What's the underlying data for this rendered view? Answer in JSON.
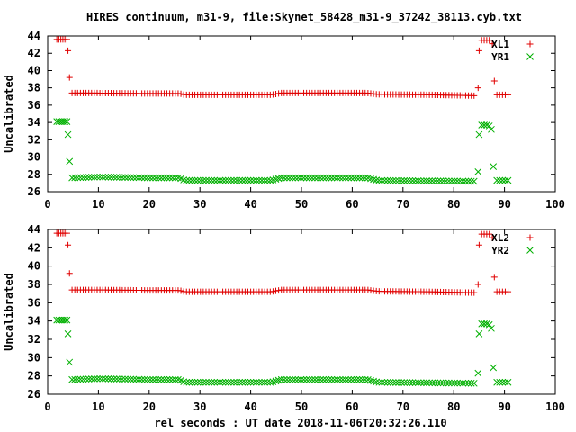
{
  "chart_data": {
    "type": "scatter",
    "title": "HIRES continuum, m31-9, file:Skynet_58428_m31-9_37242_38113.cyb.txt",
    "xlabel": "rel seconds : UT date 2018-11-06T20:32:26.110",
    "colors": {
      "red": "#e00000",
      "green": "#00b000",
      "axis": "#000000"
    },
    "panels": [
      {
        "ylabel": "Uncalibrated",
        "xlim": [
          0,
          100
        ],
        "ylim": [
          26,
          44
        ],
        "xticks": [
          "0",
          "10",
          "20",
          "30",
          "40",
          "50",
          "60",
          "70",
          "80",
          "90",
          "100"
        ],
        "yticks": [
          "26",
          "28",
          "30",
          "32",
          "34",
          "36",
          "38",
          "40",
          "42",
          "44"
        ],
        "legend_position": "top-right",
        "series": [
          {
            "name": "XL1",
            "marker": "plus",
            "color": "#e00000",
            "segments": [
              {
                "x": [
                  1.8,
                  2.2,
                  2.6,
                  3.0,
                  3.4,
                  3.8
                ],
                "y": [
                  43.6,
                  43.6,
                  43.6,
                  43.6,
                  43.6,
                  43.6
                ]
              },
              {
                "x": [
                  4.0
                ],
                "y": [
                  42.3
                ]
              },
              {
                "x": [
                  4.3
                ],
                "y": [
                  39.2
                ]
              },
              {
                "x_start": 4.8,
                "x_end": 84.2,
                "step": 0.55,
                "y_points": [
                  [
                    4.8,
                    37.4
                  ],
                  [
                    10,
                    37.4
                  ],
                  [
                    20,
                    37.35
                  ],
                  [
                    26,
                    37.35
                  ],
                  [
                    27,
                    37.2
                  ],
                  [
                    44,
                    37.2
                  ],
                  [
                    46,
                    37.4
                  ],
                  [
                    63,
                    37.4
                  ],
                  [
                    65,
                    37.25
                  ],
                  [
                    75,
                    37.2
                  ],
                  [
                    84,
                    37.1
                  ]
                ]
              },
              {
                "x": [
                  84.8
                ],
                "y": [
                  38.0
                ]
              },
              {
                "x": [
                  85.0
                ],
                "y": [
                  42.3
                ]
              },
              {
                "x": [
                  85.5,
                  86.0,
                  86.5,
                  87.0
                ],
                "y": [
                  43.5,
                  43.5,
                  43.5,
                  43.5
                ]
              },
              {
                "x": [
                  87.6
                ],
                "y": [
                  43.1
                ]
              },
              {
                "x": [
                  88.0
                ],
                "y": [
                  38.8
                ]
              },
              {
                "x_start": 88.5,
                "x_end": 90.8,
                "step": 0.55,
                "y_points": [
                  [
                    88.5,
                    37.2
                  ],
                  [
                    90.8,
                    37.2
                  ]
                ]
              }
            ]
          },
          {
            "name": "YR1",
            "marker": "cross",
            "color": "#00b000",
            "segments": [
              {
                "x": [
                  1.8,
                  2.2,
                  2.6,
                  3.0,
                  3.4,
                  3.8
                ],
                "y": [
                  34.1,
                  34.1,
                  34.1,
                  34.1,
                  34.1,
                  34.1
                ]
              },
              {
                "x": [
                  4.0
                ],
                "y": [
                  32.6
                ]
              },
              {
                "x": [
                  4.3
                ],
                "y": [
                  29.5
                ]
              },
              {
                "x_start": 4.8,
                "x_end": 84.2,
                "step": 0.55,
                "y_points": [
                  [
                    4.8,
                    27.6
                  ],
                  [
                    10,
                    27.7
                  ],
                  [
                    20,
                    27.6
                  ],
                  [
                    26,
                    27.6
                  ],
                  [
                    27,
                    27.3
                  ],
                  [
                    44,
                    27.3
                  ],
                  [
                    46,
                    27.6
                  ],
                  [
                    63,
                    27.6
                  ],
                  [
                    65,
                    27.3
                  ],
                  [
                    75,
                    27.25
                  ],
                  [
                    84,
                    27.2
                  ]
                ]
              },
              {
                "x": [
                  84.8
                ],
                "y": [
                  28.3
                ]
              },
              {
                "x": [
                  85.0
                ],
                "y": [
                  32.6
                ]
              },
              {
                "x": [
                  85.5,
                  86.0,
                  86.5,
                  87.0
                ],
                "y": [
                  33.7,
                  33.7,
                  33.7,
                  33.6
                ]
              },
              {
                "x": [
                  87.4
                ],
                "y": [
                  33.2
                ]
              },
              {
                "x": [
                  87.8
                ],
                "y": [
                  28.9
                ]
              },
              {
                "x_start": 88.5,
                "x_end": 90.8,
                "step": 0.55,
                "y_points": [
                  [
                    88.5,
                    27.3
                  ],
                  [
                    90.8,
                    27.3
                  ]
                ]
              }
            ]
          }
        ]
      },
      {
        "ylabel": "Uncalibrated",
        "xlim": [
          0,
          100
        ],
        "ylim": [
          26,
          44
        ],
        "xticks": [
          "0",
          "10",
          "20",
          "30",
          "40",
          "50",
          "60",
          "70",
          "80",
          "90",
          "100"
        ],
        "yticks": [
          "26",
          "28",
          "30",
          "32",
          "34",
          "36",
          "38",
          "40",
          "42",
          "44"
        ],
        "legend_position": "top-right",
        "series": [
          {
            "name": "XL2",
            "marker": "plus",
            "color": "#e00000",
            "segments": [
              {
                "x": [
                  1.8,
                  2.2,
                  2.6,
                  3.0,
                  3.4,
                  3.8
                ],
                "y": [
                  43.6,
                  43.6,
                  43.6,
                  43.6,
                  43.6,
                  43.6
                ]
              },
              {
                "x": [
                  4.0
                ],
                "y": [
                  42.3
                ]
              },
              {
                "x": [
                  4.3
                ],
                "y": [
                  39.2
                ]
              },
              {
                "x_start": 4.8,
                "x_end": 84.2,
                "step": 0.55,
                "y_points": [
                  [
                    4.8,
                    37.4
                  ],
                  [
                    10,
                    37.4
                  ],
                  [
                    20,
                    37.35
                  ],
                  [
                    26,
                    37.35
                  ],
                  [
                    27,
                    37.2
                  ],
                  [
                    44,
                    37.2
                  ],
                  [
                    46,
                    37.4
                  ],
                  [
                    63,
                    37.4
                  ],
                  [
                    65,
                    37.25
                  ],
                  [
                    75,
                    37.2
                  ],
                  [
                    84,
                    37.1
                  ]
                ]
              },
              {
                "x": [
                  84.8
                ],
                "y": [
                  38.0
                ]
              },
              {
                "x": [
                  85.0
                ],
                "y": [
                  42.3
                ]
              },
              {
                "x": [
                  85.5,
                  86.0,
                  86.5,
                  87.0
                ],
                "y": [
                  43.5,
                  43.5,
                  43.5,
                  43.5
                ]
              },
              {
                "x": [
                  87.6
                ],
                "y": [
                  43.1
                ]
              },
              {
                "x": [
                  88.0
                ],
                "y": [
                  38.8
                ]
              },
              {
                "x_start": 88.5,
                "x_end": 90.8,
                "step": 0.55,
                "y_points": [
                  [
                    88.5,
                    37.2
                  ],
                  [
                    90.8,
                    37.2
                  ]
                ]
              }
            ]
          },
          {
            "name": "YR2",
            "marker": "cross",
            "color": "#00b000",
            "segments": [
              {
                "x": [
                  1.8,
                  2.2,
                  2.6,
                  3.0,
                  3.4,
                  3.8
                ],
                "y": [
                  34.1,
                  34.1,
                  34.1,
                  34.1,
                  34.1,
                  34.1
                ]
              },
              {
                "x": [
                  4.0
                ],
                "y": [
                  32.6
                ]
              },
              {
                "x": [
                  4.3
                ],
                "y": [
                  29.5
                ]
              },
              {
                "x_start": 4.8,
                "x_end": 84.2,
                "step": 0.55,
                "y_points": [
                  [
                    4.8,
                    27.6
                  ],
                  [
                    10,
                    27.7
                  ],
                  [
                    20,
                    27.6
                  ],
                  [
                    26,
                    27.6
                  ],
                  [
                    27,
                    27.3
                  ],
                  [
                    44,
                    27.3
                  ],
                  [
                    46,
                    27.6
                  ],
                  [
                    63,
                    27.6
                  ],
                  [
                    65,
                    27.3
                  ],
                  [
                    75,
                    27.25
                  ],
                  [
                    84,
                    27.2
                  ]
                ]
              },
              {
                "x": [
                  84.8
                ],
                "y": [
                  28.3
                ]
              },
              {
                "x": [
                  85.0
                ],
                "y": [
                  32.6
                ]
              },
              {
                "x": [
                  85.5,
                  86.0,
                  86.5,
                  87.0
                ],
                "y": [
                  33.7,
                  33.7,
                  33.7,
                  33.6
                ]
              },
              {
                "x": [
                  87.4
                ],
                "y": [
                  33.2
                ]
              },
              {
                "x": [
                  87.8
                ],
                "y": [
                  28.9
                ]
              },
              {
                "x_start": 88.5,
                "x_end": 90.8,
                "step": 0.55,
                "y_points": [
                  [
                    88.5,
                    27.3
                  ],
                  [
                    90.8,
                    27.3
                  ]
                ]
              }
            ]
          }
        ]
      }
    ]
  }
}
